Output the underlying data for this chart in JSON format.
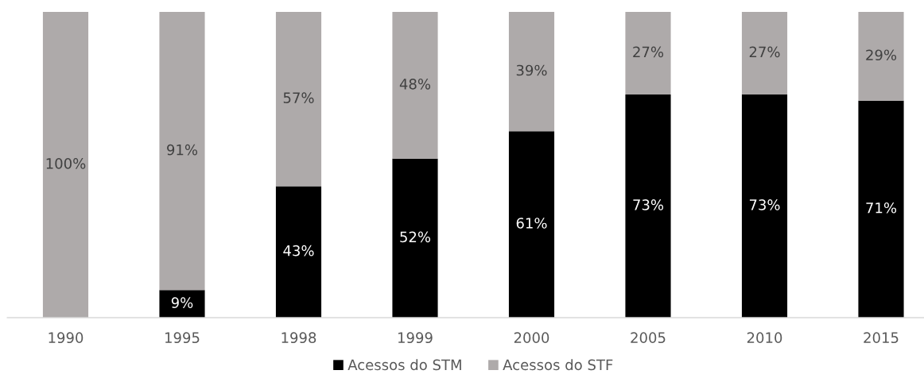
{
  "chart_data": {
    "type": "bar",
    "stacked": true,
    "legend": "bottom",
    "tick_labels": "x",
    "categories": [
      "1990",
      "1995",
      "1998",
      "1999",
      "2000",
      "2005",
      "2010",
      "2015"
    ],
    "series": [
      {
        "name": "Acessos do STM",
        "color": "#000000",
        "values": [
          null,
          9,
          43,
          52,
          61,
          73,
          73,
          71
        ],
        "value_labels": [
          null,
          "9%",
          "43%",
          "52%",
          "61%",
          "73%",
          "73%",
          "71%"
        ]
      },
      {
        "name": "Acessos do STF",
        "color": "#aeaaaa",
        "values": [
          100,
          91,
          57,
          48,
          39,
          27,
          27,
          29
        ],
        "value_labels": [
          "100%",
          "91%",
          "57%",
          "48%",
          "39%",
          "27%",
          "27%",
          "29%"
        ]
      }
    ]
  }
}
